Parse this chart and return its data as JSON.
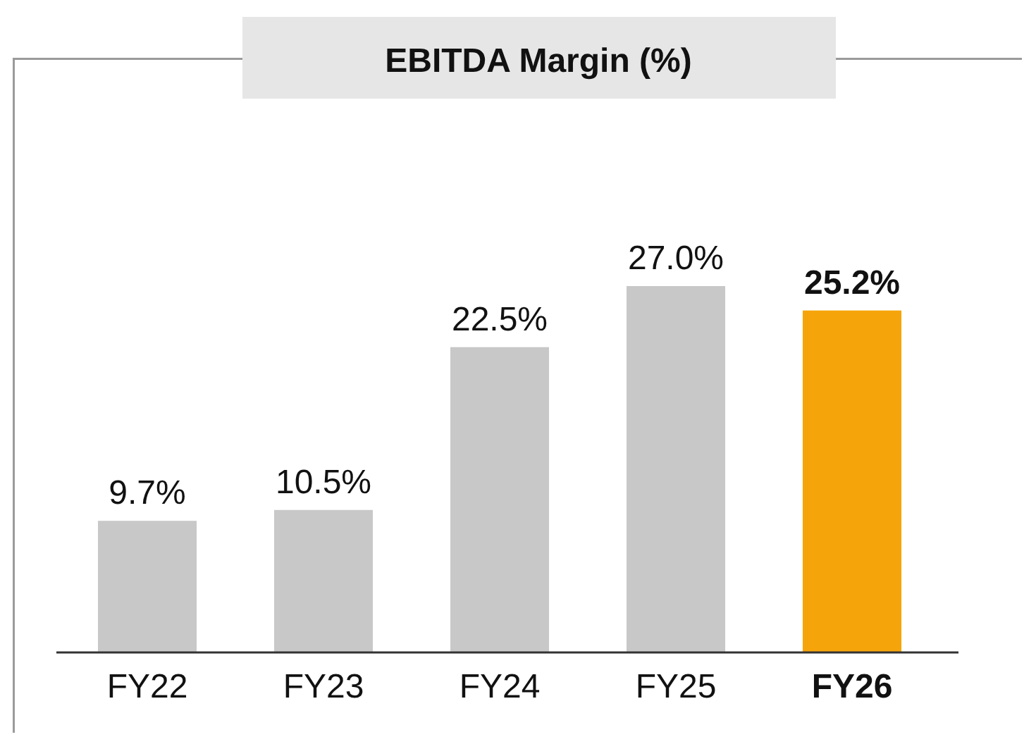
{
  "chart_data": {
    "type": "bar",
    "title": "EBITDA Margin (%)",
    "categories": [
      "FY22",
      "FY23",
      "FY24",
      "FY25",
      "FY26"
    ],
    "values": [
      9.7,
      10.5,
      22.5,
      27.0,
      25.2
    ],
    "colors": [
      "#c8c8c8",
      "#c8c8c8",
      "#c8c8c8",
      "#c8c8c8",
      "#f5a50a"
    ],
    "value_labels": [
      "9.7%",
      "10.5%",
      "22.5%",
      "27.0%",
      "25.2%"
    ]
  }
}
